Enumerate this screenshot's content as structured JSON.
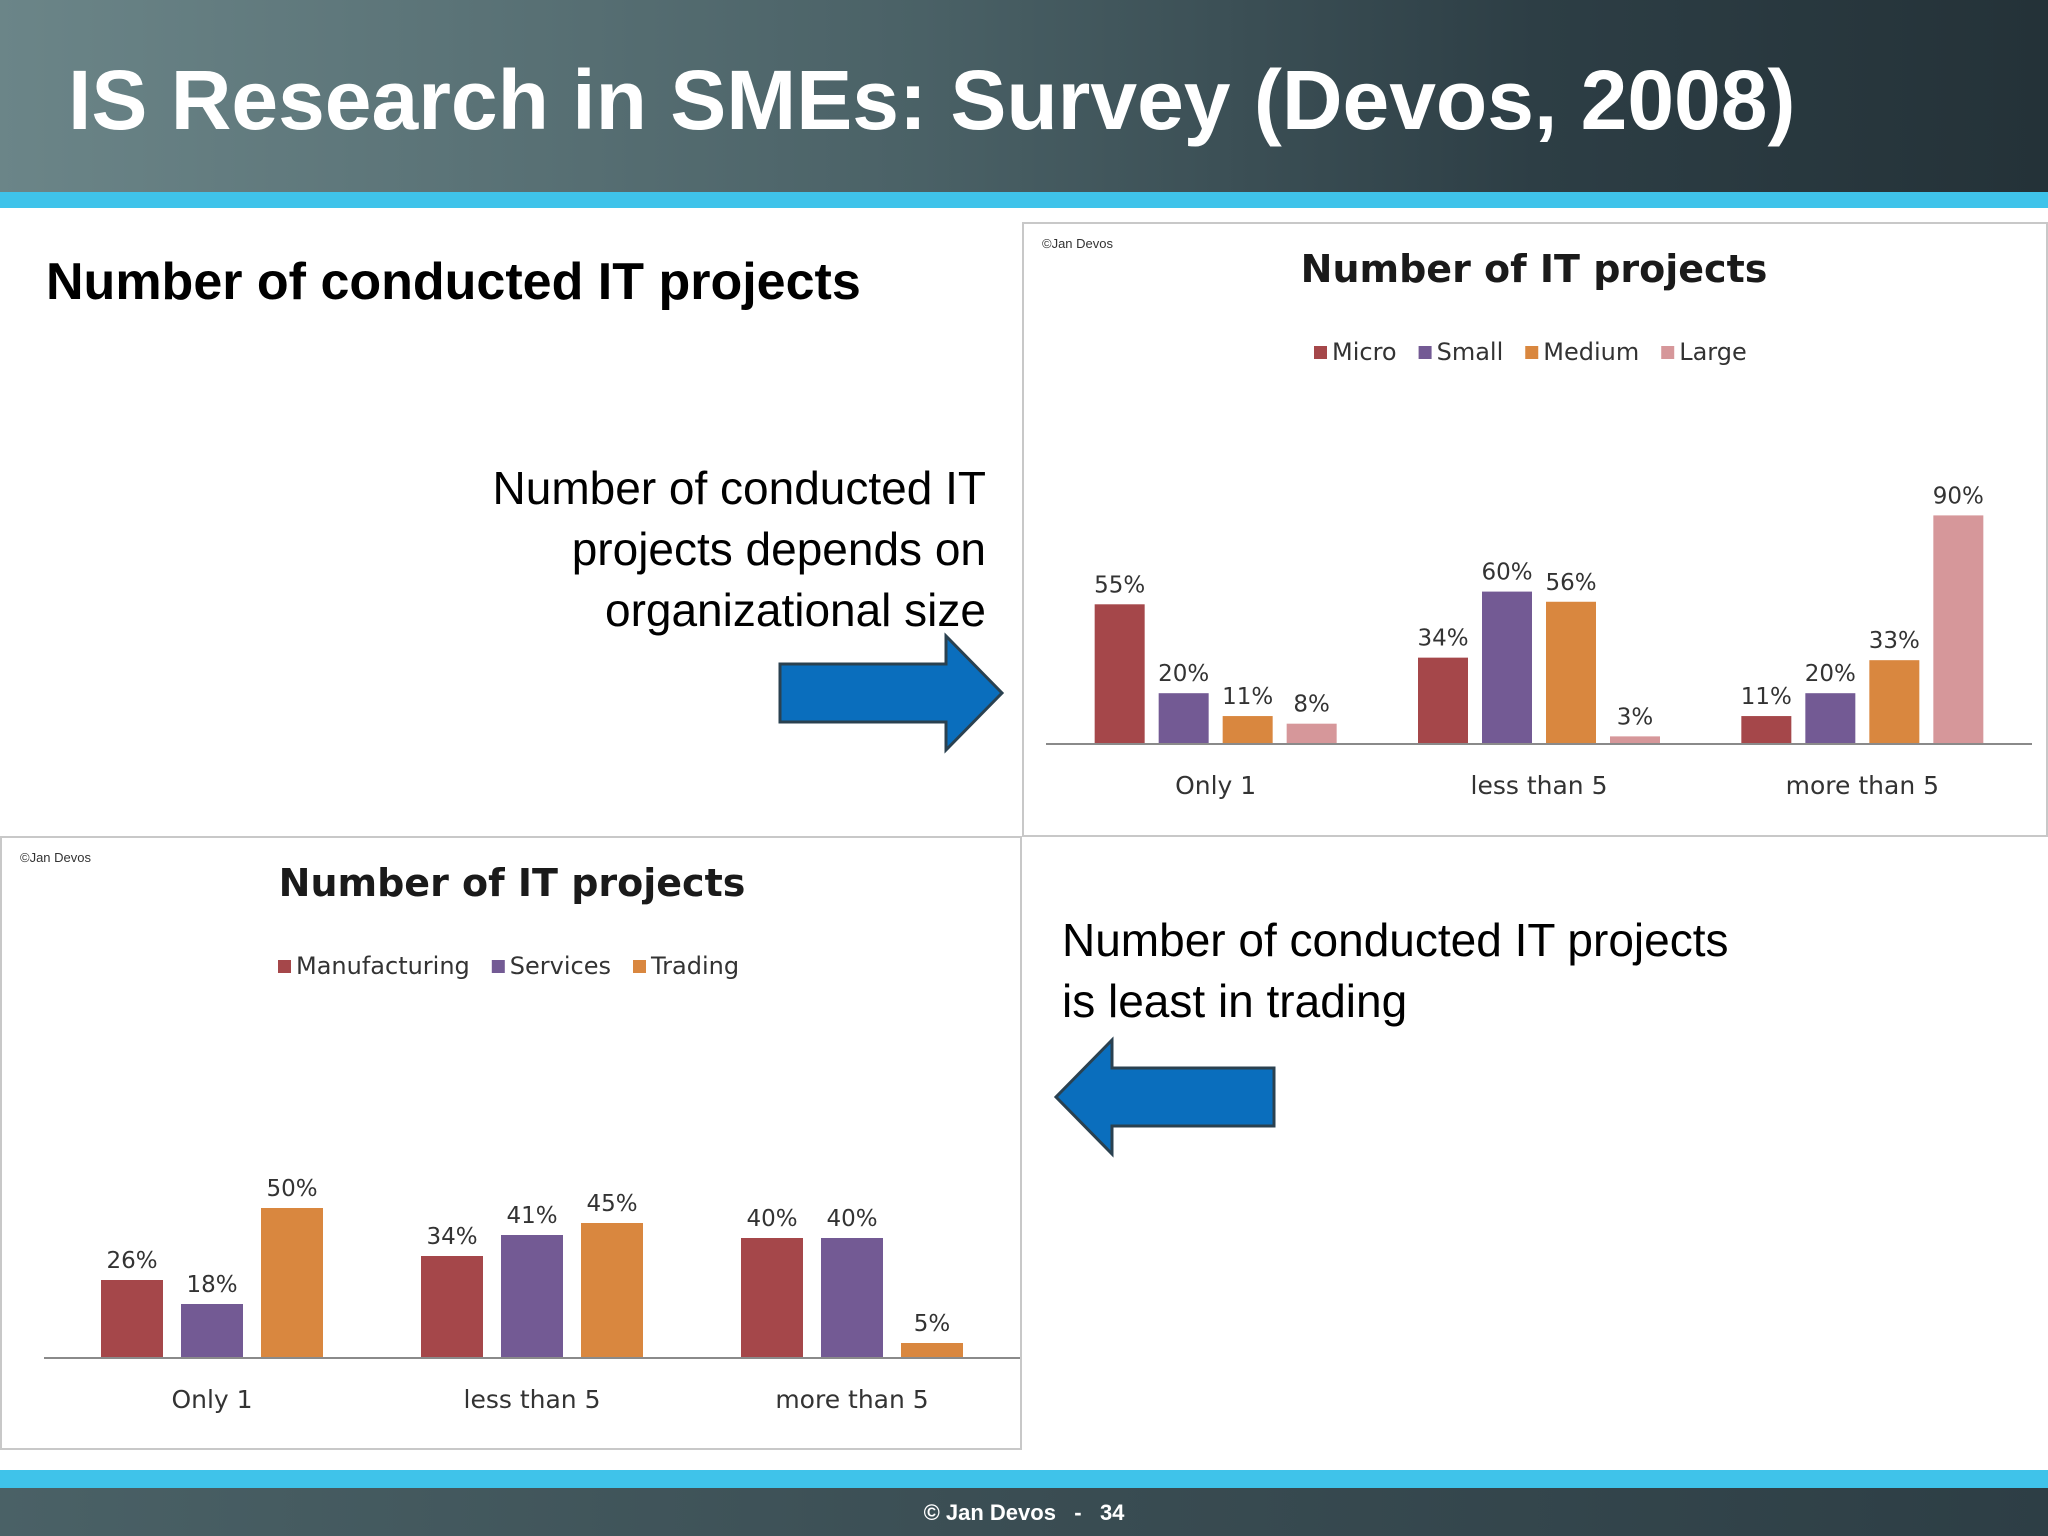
{
  "slide": {
    "title": "IS Research in SMEs: Survey (Devos, 2008)",
    "subtitle": "Number of conducted IT projects",
    "note_top": "Number of conducted IT projects depends on organizational size",
    "note_bottom": "Number of conducted IT projects is least in trading",
    "footer": "© Jan Devos   -   34",
    "colors": {
      "header_dark": "#243238",
      "accent_band": "#3fc3ea",
      "arrow_fill": "#0a6ebd",
      "arrow_outline": "#2a4150"
    }
  },
  "chart_data": [
    {
      "type": "bar",
      "copyright": "©Jan Devos",
      "title": "Number of IT projects",
      "xlabel": "",
      "ylabel": "",
      "ylim": [
        0,
        100
      ],
      "grid": false,
      "legend_position": "top",
      "categories": [
        "Only 1",
        "less than 5",
        "more than 5"
      ],
      "series": [
        {
          "name": "Micro",
          "color": "#a5474a",
          "values": [
            55,
            34,
            11
          ],
          "labels": [
            "55%",
            "34%",
            "11%"
          ]
        },
        {
          "name": "Small",
          "color": "#735a94",
          "values": [
            20,
            60,
            20
          ],
          "labels": [
            "20%",
            "60%",
            "20%"
          ]
        },
        {
          "name": "Medium",
          "color": "#d9873f",
          "values": [
            11,
            56,
            33
          ],
          "labels": [
            "11%",
            "56%",
            "33%"
          ]
        },
        {
          "name": "Large",
          "color": "#d6979a",
          "values": [
            8,
            3,
            90
          ],
          "labels": [
            "8%",
            "3%",
            "90%"
          ]
        }
      ]
    },
    {
      "type": "bar",
      "copyright": "©Jan Devos",
      "title": "Number of IT projects",
      "xlabel": "",
      "ylabel": "",
      "ylim": [
        0,
        100
      ],
      "grid": false,
      "legend_position": "top",
      "categories": [
        "Only 1",
        "less than 5",
        "more than 5"
      ],
      "series": [
        {
          "name": "Manufacturing",
          "color": "#a5474a",
          "values": [
            26,
            34,
            40
          ],
          "labels": [
            "26%",
            "34%",
            "40%"
          ]
        },
        {
          "name": "Services",
          "color": "#735a94",
          "values": [
            18,
            41,
            40
          ],
          "labels": [
            "18%",
            "41%",
            "40%"
          ]
        },
        {
          "name": "Trading",
          "color": "#d9873f",
          "values": [
            50,
            45,
            5
          ],
          "labels": [
            "50%",
            "45%",
            "5%"
          ]
        }
      ]
    }
  ]
}
